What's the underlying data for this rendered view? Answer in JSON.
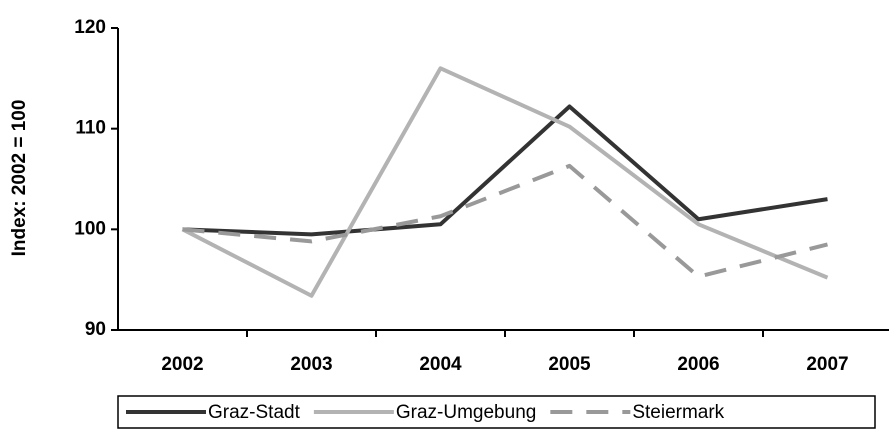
{
  "chart_data": {
    "type": "line",
    "y_label": "Index: 2002 = 100",
    "categories": [
      "2002",
      "2003",
      "2004",
      "2005",
      "2006",
      "2007"
    ],
    "series": [
      {
        "name": "Graz-Stadt",
        "color": "#333333",
        "line_style": "solid",
        "values": [
          100,
          99.5,
          100.5,
          112.2,
          101,
          103
        ]
      },
      {
        "name": "Graz-Umgebung",
        "color": "#b3b3b3",
        "line_style": "solid",
        "values": [
          100,
          93.4,
          116,
          110.2,
          100.5,
          95.2
        ]
      },
      {
        "name": "Steiermark",
        "color": "#999999",
        "line_style": "dashed",
        "values": [
          100,
          98.8,
          101.3,
          106.3,
          95.3,
          98.5
        ]
      }
    ],
    "ylim": [
      90,
      120
    ],
    "yticks": [
      90,
      100,
      110,
      120
    ],
    "grid": false,
    "legend": "bottom"
  }
}
